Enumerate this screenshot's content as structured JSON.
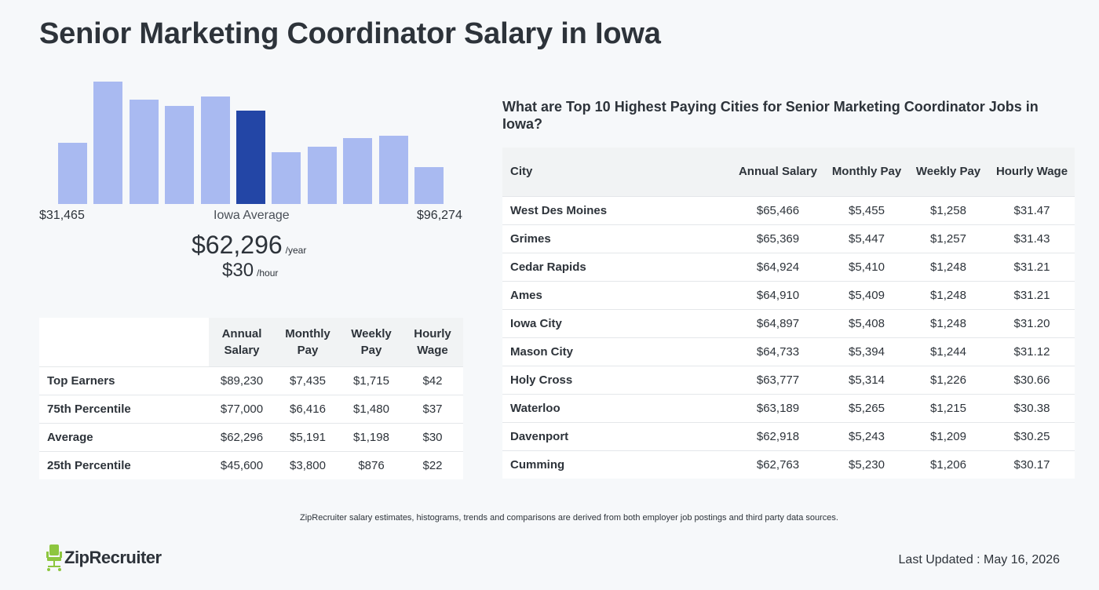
{
  "title": "Senior Marketing Coordinator Salary in Iowa",
  "histogram": {
    "range_min": "$31,465",
    "range_max": "$96,274",
    "average_label": "Iowa Average",
    "annual_value": "$62,296",
    "annual_unit": "/year",
    "hourly_value": "$30",
    "hourly_unit": "/hour",
    "highlight_index": 5,
    "bar_color": "#a9baf1",
    "highlight_color": "#2346a6"
  },
  "chart_data": {
    "type": "bar",
    "categories": [
      "1",
      "2",
      "3",
      "4",
      "5",
      "6",
      "7",
      "8",
      "9",
      "10",
      "11"
    ],
    "values": [
      50,
      100,
      85,
      80,
      88,
      76,
      42,
      47,
      54,
      56,
      30
    ]
  },
  "percentile_table": {
    "headers": [
      "Annual Salary",
      "Monthly Pay",
      "Weekly Pay",
      "Hourly Wage"
    ],
    "rows": [
      {
        "label": "Top Earners",
        "annual": "$89,230",
        "monthly": "$7,435",
        "weekly": "$1,715",
        "hourly": "$42"
      },
      {
        "label": "75th Percentile",
        "annual": "$77,000",
        "monthly": "$6,416",
        "weekly": "$1,480",
        "hourly": "$37"
      },
      {
        "label": "Average",
        "annual": "$62,296",
        "monthly": "$5,191",
        "weekly": "$1,198",
        "hourly": "$30"
      },
      {
        "label": "25th Percentile",
        "annual": "$45,600",
        "monthly": "$3,800",
        "weekly": "$876",
        "hourly": "$22"
      }
    ]
  },
  "cities": {
    "heading": "What are Top 10 Highest Paying Cities for Senior Marketing Coordinator Jobs in Iowa?",
    "headers": [
      "City",
      "Annual Salary",
      "Monthly Pay",
      "Weekly Pay",
      "Hourly Wage"
    ],
    "rows": [
      {
        "city": "West Des Moines",
        "annual": "$65,466",
        "monthly": "$5,455",
        "weekly": "$1,258",
        "hourly": "$31.47"
      },
      {
        "city": "Grimes",
        "annual": "$65,369",
        "monthly": "$5,447",
        "weekly": "$1,257",
        "hourly": "$31.43"
      },
      {
        "city": "Cedar Rapids",
        "annual": "$64,924",
        "monthly": "$5,410",
        "weekly": "$1,248",
        "hourly": "$31.21"
      },
      {
        "city": "Ames",
        "annual": "$64,910",
        "monthly": "$5,409",
        "weekly": "$1,248",
        "hourly": "$31.21"
      },
      {
        "city": "Iowa City",
        "annual": "$64,897",
        "monthly": "$5,408",
        "weekly": "$1,248",
        "hourly": "$31.20"
      },
      {
        "city": "Mason City",
        "annual": "$64,733",
        "monthly": "$5,394",
        "weekly": "$1,244",
        "hourly": "$31.12"
      },
      {
        "city": "Holy Cross",
        "annual": "$63,777",
        "monthly": "$5,314",
        "weekly": "$1,226",
        "hourly": "$30.66"
      },
      {
        "city": "Waterloo",
        "annual": "$63,189",
        "monthly": "$5,265",
        "weekly": "$1,215",
        "hourly": "$30.38"
      },
      {
        "city": "Davenport",
        "annual": "$62,918",
        "monthly": "$5,243",
        "weekly": "$1,209",
        "hourly": "$30.25"
      },
      {
        "city": "Cumming",
        "annual": "$62,763",
        "monthly": "$5,230",
        "weekly": "$1,206",
        "hourly": "$30.17"
      }
    ]
  },
  "footnote": "ZipRecruiter salary estimates, histograms, trends and comparisons are derived from both employer job postings and third party data sources.",
  "logo": {
    "text": "ZipRecruiter",
    "icon": "chair-icon",
    "icon_color": "#8dc63f"
  },
  "last_updated": "Last Updated : May 16, 2026"
}
